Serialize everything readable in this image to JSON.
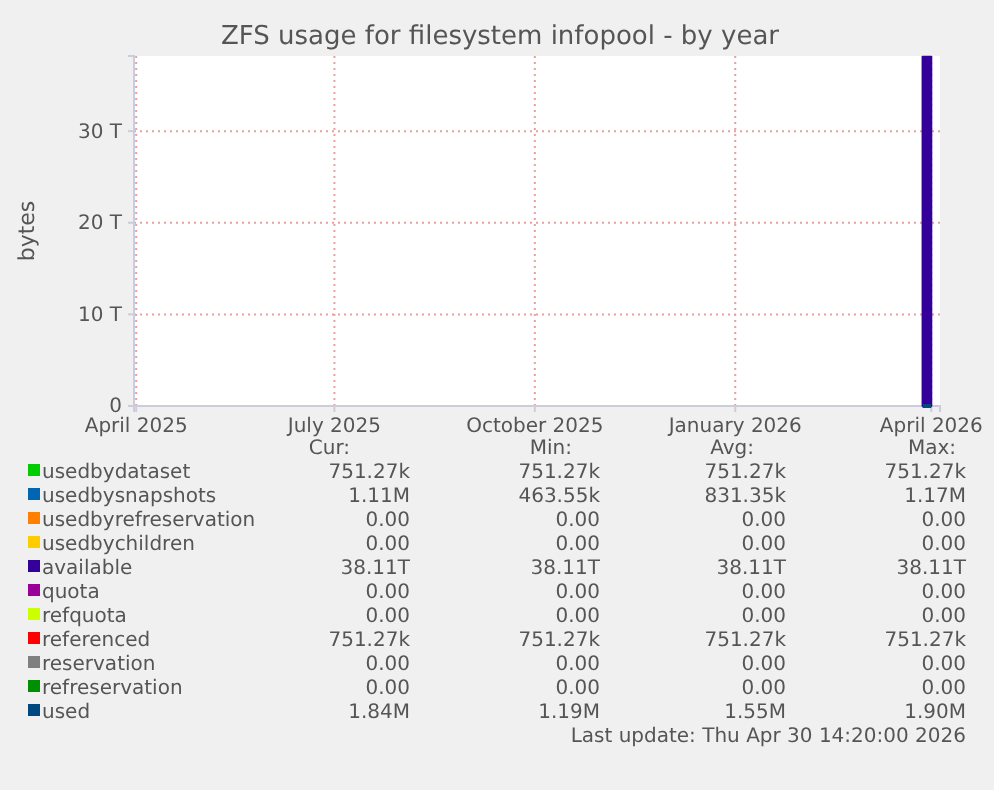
{
  "chart_data": {
    "type": "area",
    "title": "ZFS usage for filesystem infopool - by year",
    "ylabel": "bytes",
    "grid": true,
    "legend": "bottom",
    "x": [
      "2026-03-28",
      "2026-04-01"
    ],
    "xlim": [
      "2025-03-31",
      "2026-04-05"
    ],
    "xticks": [
      {
        "value": "2025-04-01",
        "label": "April 2025"
      },
      {
        "value": "2025-07-01",
        "label": "July 2025"
      },
      {
        "value": "2025-10-01",
        "label": "October 2025"
      },
      {
        "value": "2026-01-01",
        "label": "January 2026"
      },
      {
        "value": "2026-04-01",
        "label": "April 2026"
      }
    ],
    "ylim": [
      0,
      38.2
    ],
    "yticks": [
      0,
      {
        "value": 10,
        "label": "10 T"
      },
      {
        "value": 20,
        "label": "20 T"
      },
      {
        "value": 30,
        "label": "30 T"
      }
    ],
    "series": [
      {
        "name": "usedbydataset",
        "color": "#00cc00",
        "type": "line",
        "values": [
          null,
          null
        ]
      },
      {
        "name": "usedbysnapshots",
        "color": "#0066b3",
        "type": "line",
        "values": [
          null,
          null
        ]
      },
      {
        "name": "usedbyrefreservation",
        "color": "#ff8000",
        "type": "line",
        "values": [
          null,
          null
        ]
      },
      {
        "name": "usedbychildren",
        "color": "#ffcc00",
        "type": "line",
        "values": [
          null,
          null
        ]
      },
      {
        "name": "available",
        "color": "#330099",
        "values": [
          38.11,
          38.11
        ]
      },
      {
        "name": "quota",
        "color": "#990099",
        "type": "line",
        "values": [
          null,
          null
        ]
      },
      {
        "name": "refquota",
        "color": "#ccff00",
        "type": "line",
        "values": [
          null,
          null
        ]
      },
      {
        "name": "referenced",
        "color": "#ff0000",
        "type": "line",
        "values": [
          null,
          null
        ]
      },
      {
        "name": "reservation",
        "color": "#808080",
        "type": "line",
        "values": [
          null,
          null
        ]
      },
      {
        "name": "refreservation",
        "color": "#008f00",
        "type": "line",
        "values": [
          null,
          null
        ]
      },
      {
        "name": "used",
        "color": "#00487d",
        "type": "line",
        "values": [
          0,
          0
        ]
      }
    ],
    "annotations": [
      "Cur:",
      "Min:",
      "Avg:",
      "Max:",
      "751.27k",
      "751.27k",
      "751.27k",
      "751.27k",
      "1.11M",
      "463.55k",
      "831.35k",
      "1.17M",
      "0.00",
      "0.00",
      "0.00",
      "0.00",
      "0.00",
      "0.00",
      "0.00",
      "0.00",
      "38.11T",
      "38.11T",
      "38.11T",
      "38.11T",
      "0.00",
      "0.00",
      "0.00",
      "0.00",
      "0.00",
      "0.00",
      "0.00",
      "0.00",
      "751.27k",
      "751.27k",
      "751.27k",
      "751.27k",
      "0.00",
      "0.00",
      "0.00",
      "0.00",
      "0.00",
      "0.00",
      "0.00",
      "0.00",
      "1.84M",
      "1.19M",
      "1.55M",
      "1.90M",
      "Last update: Thu Apr 30 14:20:00 2026"
    ]
  }
}
